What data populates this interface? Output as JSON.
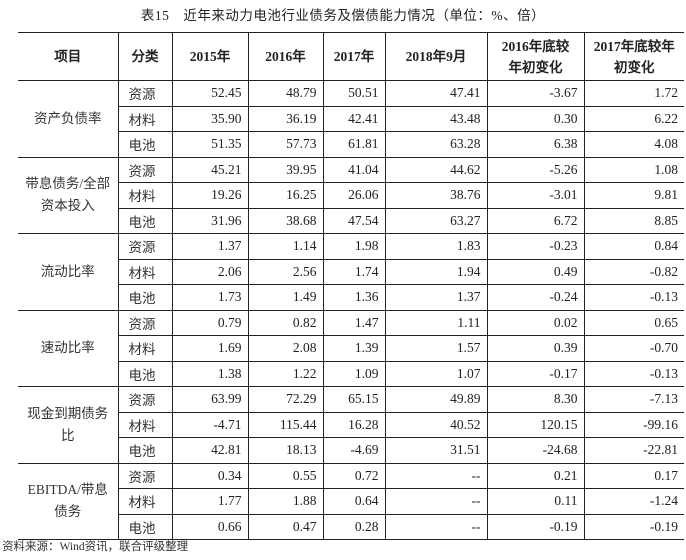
{
  "title": "表15　近年来动力电池行业债务及偿债能力情况（单位：%、倍）",
  "headers": [
    "项目",
    "分类",
    "2015年",
    "2016年",
    "2017年",
    "2018年9月",
    "2016年底较年初变化",
    "2017年底较年初变化"
  ],
  "groups": [
    {
      "item": "资产负债率",
      "rows": [
        {
          "cat": "资源",
          "v": [
            "52.45",
            "48.79",
            "50.51",
            "47.41",
            "-3.67",
            "1.72"
          ]
        },
        {
          "cat": "材料",
          "v": [
            "35.90",
            "36.19",
            "42.41",
            "43.48",
            "0.30",
            "6.22"
          ]
        },
        {
          "cat": "电池",
          "v": [
            "51.35",
            "57.73",
            "61.81",
            "63.28",
            "6.38",
            "4.08"
          ]
        }
      ]
    },
    {
      "item": "带息债务/全部资本投入",
      "rows": [
        {
          "cat": "资源",
          "v": [
            "45.21",
            "39.95",
            "41.04",
            "44.62",
            "-5.26",
            "1.08"
          ]
        },
        {
          "cat": "材料",
          "v": [
            "19.26",
            "16.25",
            "26.06",
            "38.76",
            "-3.01",
            "9.81"
          ]
        },
        {
          "cat": "电池",
          "v": [
            "31.96",
            "38.68",
            "47.54",
            "63.27",
            "6.72",
            "8.85"
          ]
        }
      ]
    },
    {
      "item": "流动比率",
      "rows": [
        {
          "cat": "资源",
          "v": [
            "1.37",
            "1.14",
            "1.98",
            "1.83",
            "-0.23",
            "0.84"
          ]
        },
        {
          "cat": "材料",
          "v": [
            "2.06",
            "2.56",
            "1.74",
            "1.94",
            "0.49",
            "-0.82"
          ]
        },
        {
          "cat": "电池",
          "v": [
            "1.73",
            "1.49",
            "1.36",
            "1.37",
            "-0.24",
            "-0.13"
          ]
        }
      ]
    },
    {
      "item": "速动比率",
      "rows": [
        {
          "cat": "资源",
          "v": [
            "0.79",
            "0.82",
            "1.47",
            "1.11",
            "0.02",
            "0.65"
          ]
        },
        {
          "cat": "材料",
          "v": [
            "1.69",
            "2.08",
            "1.39",
            "1.57",
            "0.39",
            "-0.70"
          ]
        },
        {
          "cat": "电池",
          "v": [
            "1.38",
            "1.22",
            "1.09",
            "1.07",
            "-0.17",
            "-0.13"
          ]
        }
      ]
    },
    {
      "item": "现金到期债务比",
      "rows": [
        {
          "cat": "资源",
          "v": [
            "63.99",
            "72.29",
            "65.15",
            "49.89",
            "8.30",
            "-7.13"
          ]
        },
        {
          "cat": "材料",
          "v": [
            "-4.71",
            "115.44",
            "16.28",
            "40.52",
            "120.15",
            "-99.16"
          ]
        },
        {
          "cat": "电池",
          "v": [
            "42.81",
            "18.13",
            "-4.69",
            "31.51",
            "-24.68",
            "-22.81"
          ]
        }
      ]
    },
    {
      "item": "EBITDA/带息债务",
      "rows": [
        {
          "cat": "资源",
          "v": [
            "0.34",
            "0.55",
            "0.72",
            "--",
            "0.21",
            "0.17"
          ]
        },
        {
          "cat": "材料",
          "v": [
            "1.77",
            "1.88",
            "0.64",
            "--",
            "0.11",
            "-1.24"
          ]
        },
        {
          "cat": "电池",
          "v": [
            "0.66",
            "0.47",
            "0.28",
            "--",
            "-0.19",
            "-0.19"
          ]
        }
      ]
    }
  ],
  "source": "资料来源：Wind资讯，联合评级整理"
}
